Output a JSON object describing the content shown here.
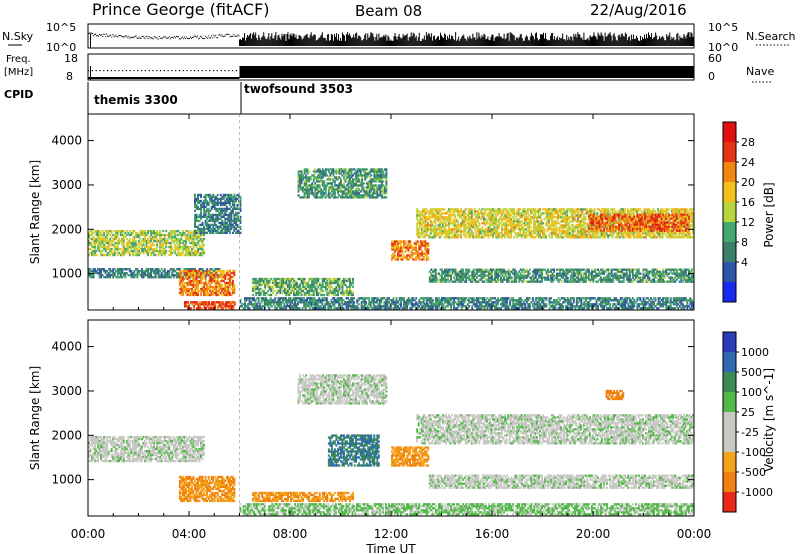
{
  "header": {
    "title": "Prince George (fitACF)",
    "beam": "Beam 08",
    "date": "22/Aug/2016"
  },
  "nsky_panel": {
    "left_label": "N.Sky",
    "right_label": "N.Search",
    "left_ticks": [
      "10^5",
      "10^0"
    ],
    "right_ticks": [
      "10^5",
      "10^0"
    ]
  },
  "freq_panel": {
    "left_label_1": "Freq.",
    "left_label_2": "[MHz]",
    "right_label": "Nave",
    "left_ticks": [
      "18",
      "8"
    ],
    "right_ticks": [
      "60",
      "0"
    ]
  },
  "cpid_panel": {
    "label": "CPID",
    "modes": [
      {
        "name": "themis 3300",
        "start_hour": 0,
        "end_hour": 6
      },
      {
        "name": "twofsound 3503",
        "start_hour": 6,
        "end_hour": 24
      }
    ]
  },
  "x_axis": {
    "label": "Time UT",
    "ticks": [
      "00:00",
      "04:00",
      "08:00",
      "12:00",
      "16:00",
      "20:00",
      "00:00"
    ],
    "range_hours": [
      0,
      24
    ]
  },
  "chart_data": [
    {
      "type": "heatmap",
      "panel": "power",
      "ylabel": "Slant Range [km]",
      "yticks": [
        1000,
        2000,
        3000,
        4000
      ],
      "ylim": [
        180,
        4600
      ],
      "colorbar_label": "Power [dB]",
      "colorbar_ticks": [
        4,
        8,
        12,
        16,
        20,
        24,
        28
      ],
      "colorbar_colors": [
        "#1a28f0",
        "#2e56a8",
        "#3a7f6a",
        "#46a86e",
        "#b8d43c",
        "#f4c01c",
        "#f18612",
        "#e43414",
        "#e01010"
      ],
      "echo_regions": [
        {
          "t0": 0.0,
          "t1": 4.6,
          "r0": 1400,
          "r1": 1950,
          "power_db": 18
        },
        {
          "t0": 0.0,
          "t1": 5.2,
          "r0": 900,
          "r1": 1100,
          "power_db": 10
        },
        {
          "t0": 3.6,
          "t1": 5.8,
          "r0": 500,
          "r1": 1050,
          "power_db": 26
        },
        {
          "t0": 3.8,
          "t1": 5.8,
          "r0": 200,
          "r1": 380,
          "power_db": 30
        },
        {
          "t0": 4.2,
          "t1": 6.0,
          "r0": 1900,
          "r1": 2800,
          "power_db": 10
        },
        {
          "t0": 6.5,
          "t1": 10.5,
          "r0": 500,
          "r1": 900,
          "power_db": 14
        },
        {
          "t0": 8.3,
          "t1": 11.8,
          "r0": 2700,
          "r1": 3350,
          "power_db": 12
        },
        {
          "t0": 12.0,
          "t1": 13.5,
          "r0": 1300,
          "r1": 1750,
          "power_db": 26
        },
        {
          "t0": 13.0,
          "t1": 24.0,
          "r0": 1800,
          "r1": 2450,
          "power_db": 20
        },
        {
          "t0": 19.8,
          "t1": 23.8,
          "r0": 1950,
          "r1": 2350,
          "power_db": 28
        },
        {
          "t0": 13.5,
          "t1": 24.0,
          "r0": 800,
          "r1": 1100,
          "power_db": 12
        },
        {
          "t0": 6.0,
          "t1": 24.0,
          "r0": 200,
          "r1": 450,
          "power_db": 10
        }
      ]
    },
    {
      "type": "heatmap",
      "panel": "velocity",
      "ylabel": "Slant Range [km]",
      "yticks": [
        1000,
        2000,
        3000,
        4000
      ],
      "ylim": [
        180,
        4600
      ],
      "colorbar_label": "Velocity [m s^-1]",
      "colorbar_ticks": [
        1000,
        500,
        100,
        25,
        -25,
        -100,
        -500,
        -1000
      ],
      "colorbar_colors": [
        "#2a3cb8",
        "#2e6ab0",
        "#3c8a56",
        "#52b848",
        "#c8c8c4",
        "#c8c8c4",
        "#f3a41c",
        "#f08010",
        "#e82818"
      ],
      "echo_regions": [
        {
          "t0": 0.0,
          "t1": 4.6,
          "r0": 1400,
          "r1": 1950,
          "velocity": 0
        },
        {
          "t0": 3.6,
          "t1": 5.8,
          "r0": 500,
          "r1": 1050,
          "velocity": -300
        },
        {
          "t0": 6.5,
          "t1": 10.5,
          "r0": 500,
          "r1": 700,
          "velocity": -300
        },
        {
          "t0": 8.3,
          "t1": 11.8,
          "r0": 2700,
          "r1": 3350,
          "velocity": 0
        },
        {
          "t0": 9.5,
          "t1": 11.5,
          "r0": 1300,
          "r1": 2000,
          "velocity": 300
        },
        {
          "t0": 12.0,
          "t1": 13.5,
          "r0": 1300,
          "r1": 1750,
          "velocity": -300
        },
        {
          "t0": 13.0,
          "t1": 24.0,
          "r0": 1800,
          "r1": 2450,
          "velocity": 0
        },
        {
          "t0": 13.5,
          "t1": 24.0,
          "r0": 800,
          "r1": 1100,
          "velocity": 0
        },
        {
          "t0": 6.0,
          "t1": 24.0,
          "r0": 200,
          "r1": 450,
          "velocity": 40
        },
        {
          "t0": 20.5,
          "t1": 21.2,
          "r0": 2800,
          "r1": 3000,
          "velocity": -600
        }
      ]
    }
  ]
}
